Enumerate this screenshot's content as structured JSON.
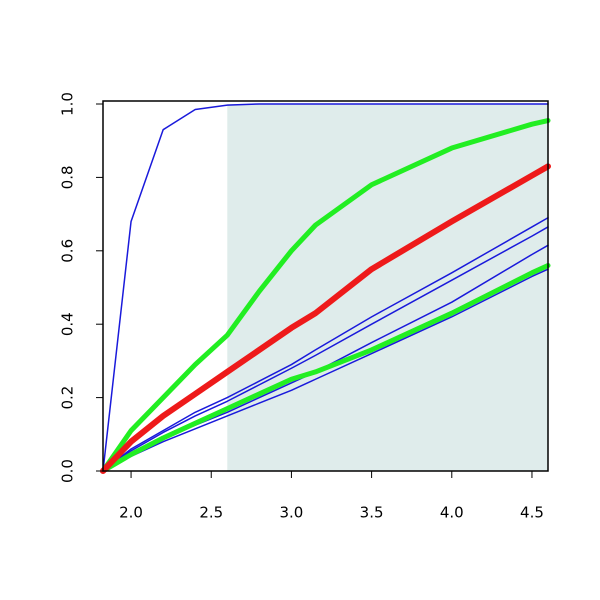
{
  "chart_data": {
    "type": "line",
    "x": [
      1.825,
      2.0,
      2.2,
      2.4,
      2.6,
      2.8,
      3.0,
      3.15,
      3.5,
      4.0,
      4.5,
      4.6
    ],
    "series": [
      {
        "color": "#1a1adb",
        "width": 1.5,
        "values": [
          0,
          0.68,
          0.93,
          0.985,
          0.997,
          1,
          1,
          1,
          1,
          1,
          1,
          1
        ]
      },
      {
        "color": "#1a1adb",
        "width": 1.5,
        "values": [
          0,
          0.06,
          0.11,
          0.16,
          0.2,
          0.245,
          0.29,
          0.33,
          0.42,
          0.54,
          0.665,
          0.69
        ]
      },
      {
        "color": "#1a1adb",
        "width": 1.5,
        "values": [
          0,
          0.055,
          0.105,
          0.15,
          0.19,
          0.235,
          0.28,
          0.315,
          0.4,
          0.52,
          0.64,
          0.665
        ]
      },
      {
        "color": "#1a1adb",
        "width": 1.5,
        "values": [
          0,
          0.045,
          0.09,
          0.125,
          0.16,
          0.2,
          0.24,
          0.27,
          0.35,
          0.46,
          0.59,
          0.615
        ]
      },
      {
        "color": "#1a1adb",
        "width": 1.5,
        "values": [
          0,
          0.04,
          0.08,
          0.115,
          0.15,
          0.185,
          0.22,
          0.25,
          0.32,
          0.42,
          0.53,
          0.55
        ]
      },
      {
        "color": "#22ee22",
        "width": 5,
        "values": [
          0,
          0.045,
          0.09,
          0.13,
          0.17,
          0.21,
          0.25,
          0.27,
          0.33,
          0.43,
          0.54,
          0.56
        ]
      },
      {
        "color": "#22ee22",
        "width": 5,
        "values": [
          0,
          0.11,
          0.2,
          0.29,
          0.37,
          0.49,
          0.6,
          0.67,
          0.78,
          0.88,
          0.945,
          0.955
        ]
      },
      {
        "color": "#ee1a1a",
        "width": 6,
        "values": [
          0,
          0.08,
          0.15,
          0.21,
          0.27,
          0.33,
          0.39,
          0.43,
          0.55,
          0.68,
          0.805,
          0.83
        ]
      }
    ],
    "shade": {
      "x": [
        2.6,
        4.6
      ],
      "color": "#dfeceb"
    },
    "xlim": [
      1.825,
      4.6
    ],
    "ylim": [
      0,
      1
    ],
    "xticks": [
      {
        "value": 2,
        "label": "2.0"
      },
      2.5,
      {
        "value": 3,
        "label": "3.0"
      },
      3.5,
      {
        "value": 4,
        "label": "4.0"
      },
      4.5
    ],
    "yticks": [
      {
        "value": 0,
        "label": "0.0"
      },
      0.2,
      0.4,
      0.6,
      0.8,
      {
        "value": 1,
        "label": "1.0"
      }
    ]
  }
}
